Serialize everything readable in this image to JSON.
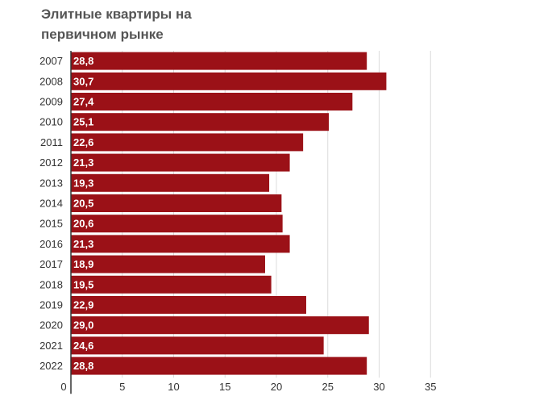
{
  "title": "Элитные квартиры на первичном рынке",
  "chart_data": {
    "type": "bar",
    "orientation": "horizontal",
    "title": "Элитные квартиры на первичном рынке",
    "xlabel": "",
    "ylabel": "",
    "categories": [
      "2007",
      "2008",
      "2009",
      "2010",
      "2011",
      "2012",
      "2013",
      "2014",
      "2015",
      "2016",
      "2017",
      "2018",
      "2019",
      "2020",
      "2021",
      "2022"
    ],
    "values": [
      28.8,
      30.7,
      27.4,
      25.1,
      22.6,
      21.3,
      19.3,
      20.5,
      20.6,
      21.3,
      18.9,
      19.5,
      22.9,
      29.0,
      24.6,
      28.8
    ],
    "value_labels": [
      "28,8",
      "30,7",
      "27,4",
      "25,1",
      "22,6",
      "21,3",
      "19,3",
      "20,5",
      "20,6",
      "21,3",
      "18,9",
      "19,5",
      "22,9",
      "29,0",
      "24,6",
      "28,8"
    ],
    "xlim": [
      0,
      35
    ],
    "x_ticks": [
      0,
      5,
      10,
      15,
      20,
      25,
      30,
      35
    ],
    "grid": true,
    "legend": "none",
    "bar_color": "#9b1117"
  }
}
